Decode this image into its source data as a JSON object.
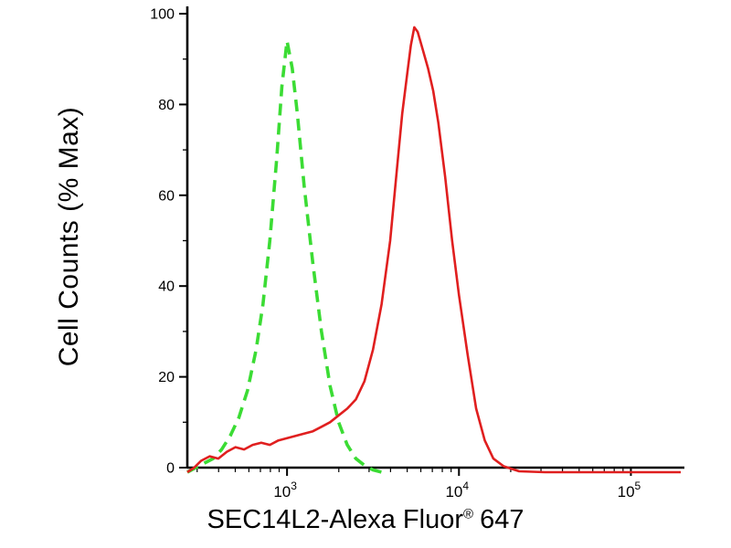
{
  "chart_data": {
    "type": "line",
    "title": "",
    "subtitle": "",
    "ylabel": "Cell Counts (% Max)",
    "xlabel": "SEC14L2-Alexa Fluor® 647",
    "xlabel_parts": {
      "main": "SEC14L2-Alexa Fluor",
      "registered": "®",
      "suffix": "647"
    },
    "x_scale": "log10",
    "x_range_log10": [
      2.42,
      5.29
    ],
    "x_major_tick_exponents": [
      3,
      4,
      5
    ],
    "x_major_tick_base": "10",
    "ylim": [
      0,
      100
    ],
    "y_major_ticks": [
      0,
      20,
      40,
      60,
      80,
      100
    ],
    "y_minor_ticks": [
      10,
      30,
      50,
      70,
      90
    ],
    "grid": false,
    "legend": "none",
    "axis_color": "#000000",
    "series": [
      {
        "name": "green dashed curve",
        "style": "dashed",
        "color": "#3bdc34",
        "peak": {
          "x_log10": 3.0,
          "y": 94
        },
        "x_log10": [
          2.42,
          2.47,
          2.52,
          2.57,
          2.62,
          2.67,
          2.72,
          2.77,
          2.82,
          2.86,
          2.9,
          2.94,
          2.97,
          3.0,
          3.03,
          3.06,
          3.1,
          3.15,
          3.2,
          3.25,
          3.3,
          3.35,
          3.4,
          3.45,
          3.5,
          3.55
        ],
        "y": [
          -1,
          0,
          1,
          2,
          4,
          7,
          11,
          17,
          26,
          36,
          50,
          68,
          84,
          94,
          88,
          78,
          62,
          45,
          30,
          18,
          10,
          5,
          2,
          0.5,
          -0.5,
          -1
        ]
      },
      {
        "name": "red solid curve",
        "style": "solid",
        "color": "#e01f1f",
        "peak": {
          "x_log10": 3.74,
          "y": 97
        },
        "x_log10": [
          2.42,
          2.46,
          2.5,
          2.55,
          2.6,
          2.65,
          2.7,
          2.75,
          2.8,
          2.85,
          2.9,
          2.95,
          3.0,
          3.05,
          3.1,
          3.15,
          3.2,
          3.25,
          3.3,
          3.35,
          3.4,
          3.45,
          3.5,
          3.55,
          3.6,
          3.64,
          3.67,
          3.7,
          3.72,
          3.74,
          3.76,
          3.79,
          3.82,
          3.85,
          3.88,
          3.92,
          3.96,
          4.0,
          4.05,
          4.1,
          4.15,
          4.2,
          4.26,
          4.35,
          4.5,
          4.75,
          5.0,
          5.29
        ],
        "y": [
          -1,
          0,
          1.5,
          2.5,
          2,
          3.5,
          4.5,
          4,
          5,
          5.5,
          5,
          6,
          6.5,
          7,
          7.5,
          8,
          9,
          10,
          11.5,
          13,
          15,
          19,
          26,
          36,
          50,
          66,
          78,
          87,
          93,
          97,
          96,
          92,
          88,
          83,
          76,
          64,
          50,
          38,
          25,
          13,
          6,
          2,
          0.3,
          -0.8,
          -1,
          -1,
          -1,
          -1
        ]
      }
    ]
  }
}
